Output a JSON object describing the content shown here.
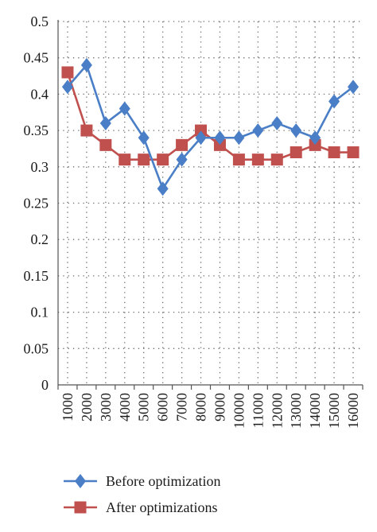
{
  "chart_data": {
    "type": "line",
    "categories": [
      "1000",
      "2000",
      "3000",
      "4000",
      "5000",
      "6000",
      "7000",
      "8000",
      "9000",
      "10000",
      "11000",
      "12000",
      "13000",
      "14000",
      "15000",
      "16000"
    ],
    "series": [
      {
        "name": "Before optimization",
        "color": "#4a7ec6",
        "marker": "diamond",
        "values": [
          0.41,
          0.44,
          0.36,
          0.38,
          0.34,
          0.27,
          0.31,
          0.34,
          0.34,
          0.34,
          0.35,
          0.36,
          0.35,
          0.34,
          0.39,
          0.41
        ]
      },
      {
        "name": "After optimizations",
        "color": "#c0504d",
        "marker": "square",
        "values": [
          0.43,
          0.35,
          0.33,
          0.31,
          0.31,
          0.31,
          0.33,
          0.35,
          0.33,
          0.31,
          0.31,
          0.31,
          0.32,
          0.33,
          0.32,
          0.32
        ]
      }
    ],
    "y_ticks": [
      "0",
      "0.05",
      "0.1",
      "0.15",
      "0.2",
      "0.25",
      "0.3",
      "0.35",
      "0.4",
      "0.45",
      "0.5"
    ],
    "ylim": [
      0,
      0.5
    ],
    "grid": "dotted horizontal and vertical",
    "legend": "bottom"
  }
}
